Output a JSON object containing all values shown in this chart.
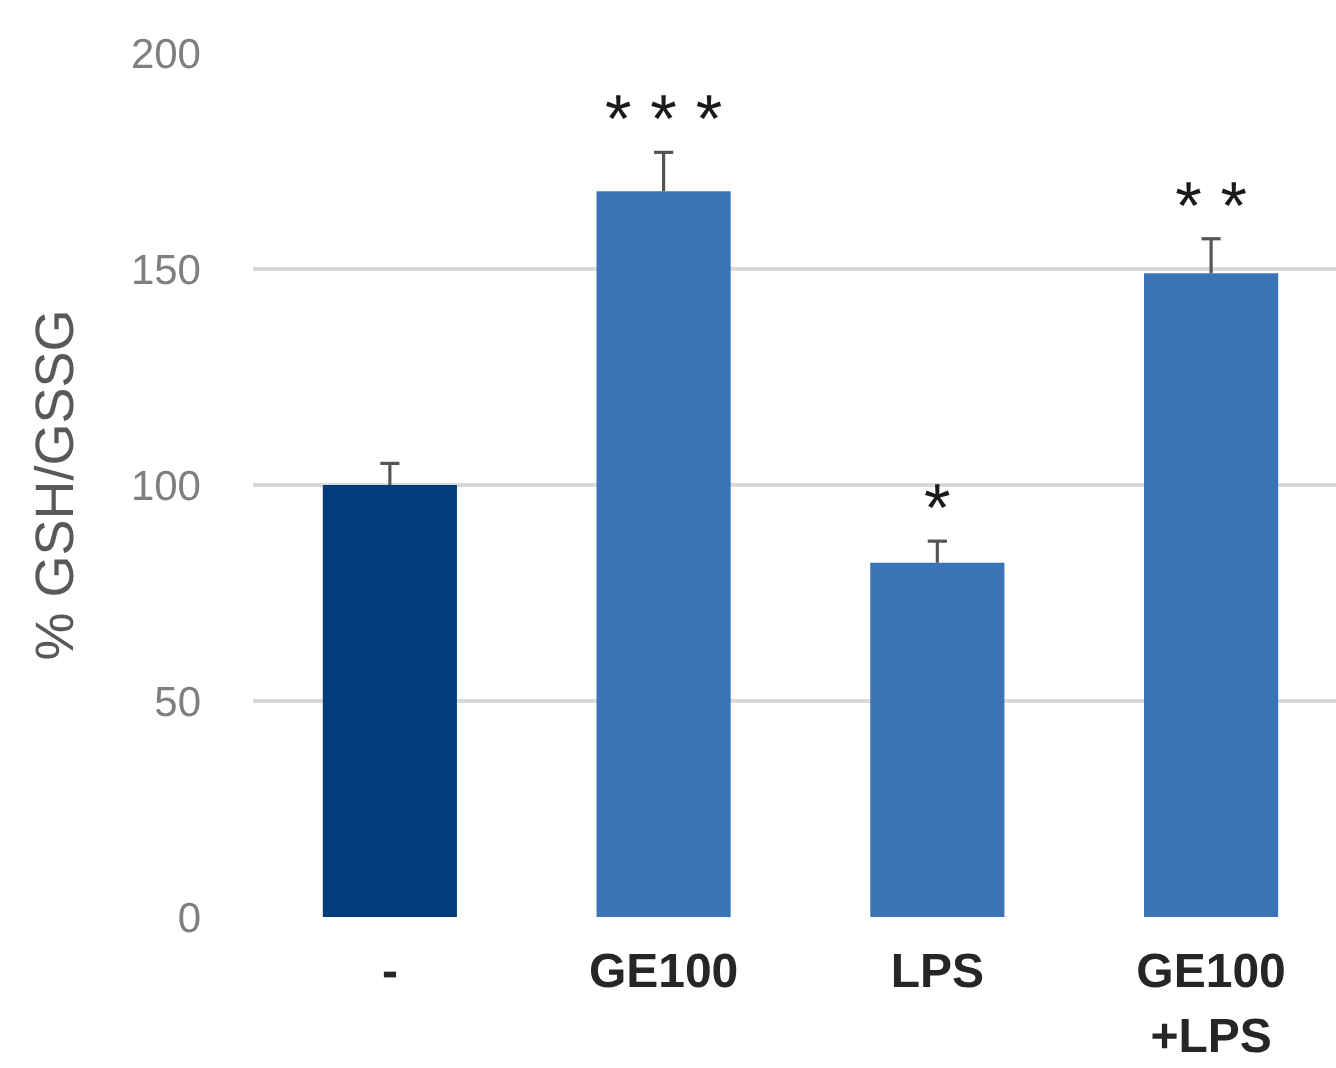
{
  "chart_data": {
    "type": "bar",
    "ylabel": "% GSH/GSSG",
    "categories": [
      "-",
      "GE100",
      "LPS",
      "GE100\n+LPS"
    ],
    "values": [
      100,
      168,
      82,
      149
    ],
    "colors": [
      "#033c7a",
      "#3a74b7",
      "#3a74b7",
      "#3a74b7"
    ],
    "errors": [
      [
        100,
        105
      ],
      [
        168,
        177
      ],
      [
        82,
        87
      ],
      [
        149,
        157
      ]
    ],
    "ylim": [
      0,
      200
    ],
    "yticks": [
      0,
      50,
      100,
      150,
      200
    ],
    "grid": "y",
    "annotations": [
      {
        "text": "* * *",
        "x": "GE100",
        "y": 177
      },
      {
        "text": "*",
        "x": "LPS",
        "y": 87
      },
      {
        "text": "* *",
        "x": "GE100\n+LPS",
        "y": 157
      }
    ]
  }
}
